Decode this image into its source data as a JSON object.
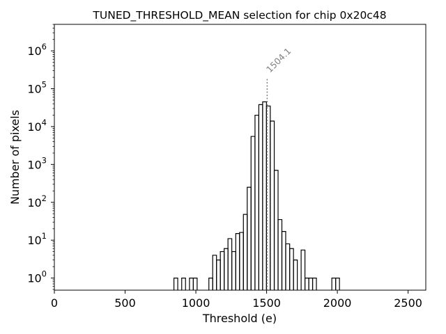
{
  "chart_data": {
    "type": "histogram",
    "title": "TUNED_THRESHOLD_MEAN selection for chip 0x20c48",
    "xlabel": "Threshold (e)",
    "ylabel": "Number of pixels",
    "xlim": [
      0,
      2625
    ],
    "ylim_log10": [
      -0.32,
      6.7
    ],
    "yscale": "log",
    "x_ticks": [
      0,
      500,
      1000,
      1500,
      2000,
      2500
    ],
    "x_tick_labels": [
      "0",
      "500",
      "1000",
      "1500",
      "2000",
      "2500"
    ],
    "y_ticks": [
      0,
      1,
      2,
      3,
      4,
      5,
      6
    ],
    "y_tick_labels": [
      {
        "base": "10",
        "exp": "0"
      },
      {
        "base": "10",
        "exp": "1"
      },
      {
        "base": "10",
        "exp": "2"
      },
      {
        "base": "10",
        "exp": "3"
      },
      {
        "base": "10",
        "exp": "4"
      },
      {
        "base": "10",
        "exp": "5"
      },
      {
        "base": "10",
        "exp": "6"
      }
    ],
    "mean": {
      "value": 1504.1,
      "label": "1504.1",
      "line_top_count": 200000
    },
    "bins": [
      {
        "start": 845,
        "end": 872,
        "count": 1
      },
      {
        "start": 900,
        "end": 927,
        "count": 1
      },
      {
        "start": 955,
        "end": 982,
        "count": 1
      },
      {
        "start": 982,
        "end": 1009,
        "count": 1
      },
      {
        "start": 1092,
        "end": 1119,
        "count": 1
      },
      {
        "start": 1119,
        "end": 1146,
        "count": 4
      },
      {
        "start": 1146,
        "end": 1173,
        "count": 3
      },
      {
        "start": 1173,
        "end": 1200,
        "count": 5
      },
      {
        "start": 1200,
        "end": 1227,
        "count": 6
      },
      {
        "start": 1227,
        "end": 1254,
        "count": 11
      },
      {
        "start": 1254,
        "end": 1282,
        "count": 5
      },
      {
        "start": 1282,
        "end": 1309,
        "count": 15
      },
      {
        "start": 1309,
        "end": 1336,
        "count": 16
      },
      {
        "start": 1336,
        "end": 1363,
        "count": 48
      },
      {
        "start": 1363,
        "end": 1390,
        "count": 250
      },
      {
        "start": 1390,
        "end": 1418,
        "count": 5500
      },
      {
        "start": 1418,
        "end": 1445,
        "count": 20000
      },
      {
        "start": 1445,
        "end": 1472,
        "count": 38000
      },
      {
        "start": 1472,
        "end": 1499,
        "count": 45000
      },
      {
        "start": 1499,
        "end": 1526,
        "count": 35000
      },
      {
        "start": 1526,
        "end": 1554,
        "count": 14000
      },
      {
        "start": 1554,
        "end": 1581,
        "count": 700
      },
      {
        "start": 1581,
        "end": 1608,
        "count": 35
      },
      {
        "start": 1608,
        "end": 1635,
        "count": 17
      },
      {
        "start": 1635,
        "end": 1663,
        "count": 8
      },
      {
        "start": 1663,
        "end": 1690,
        "count": 6
      },
      {
        "start": 1690,
        "end": 1717,
        "count": 3
      },
      {
        "start": 1744,
        "end": 1771,
        "count": 5.5
      },
      {
        "start": 1771,
        "end": 1798,
        "count": 1
      },
      {
        "start": 1798,
        "end": 1825,
        "count": 1
      },
      {
        "start": 1825,
        "end": 1852,
        "count": 1
      },
      {
        "start": 1961,
        "end": 1988,
        "count": 1
      },
      {
        "start": 1988,
        "end": 2015,
        "count": 1
      }
    ]
  }
}
